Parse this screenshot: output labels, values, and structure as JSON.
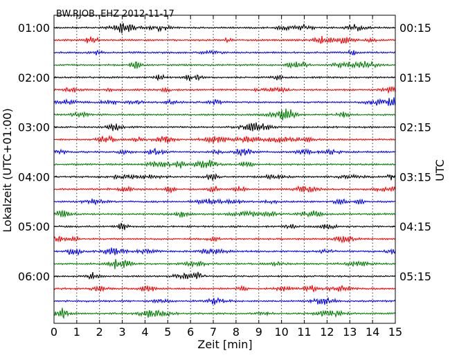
{
  "chart_data": {
    "type": "line",
    "subtype": "dayplot",
    "title": "BW.RJOB..EHZ 2012-11-17",
    "xlabel": "Zeit  [min]",
    "ylabel_left": "Lokalzeit (UTC+01:00)",
    "ylabel_right": "UTC",
    "xlim": [
      0,
      15
    ],
    "x_ticks": [
      "0",
      "1",
      "2",
      "3",
      "4",
      "5",
      "6",
      "7",
      "8",
      "9",
      "10",
      "11",
      "12",
      "13",
      "14",
      "15"
    ],
    "grid": "vertical dotted at each minute",
    "left_tick_labels": [
      "01:00",
      "02:00",
      "03:00",
      "04:00",
      "05:00",
      "06:00"
    ],
    "right_tick_labels": [
      "00:15",
      "01:15",
      "02:15",
      "03:15",
      "04:15",
      "05:15"
    ],
    "trace_count": 24,
    "trace_colors": [
      "#000000",
      "#ff0000",
      "#0000ff",
      "#008000"
    ]
  }
}
